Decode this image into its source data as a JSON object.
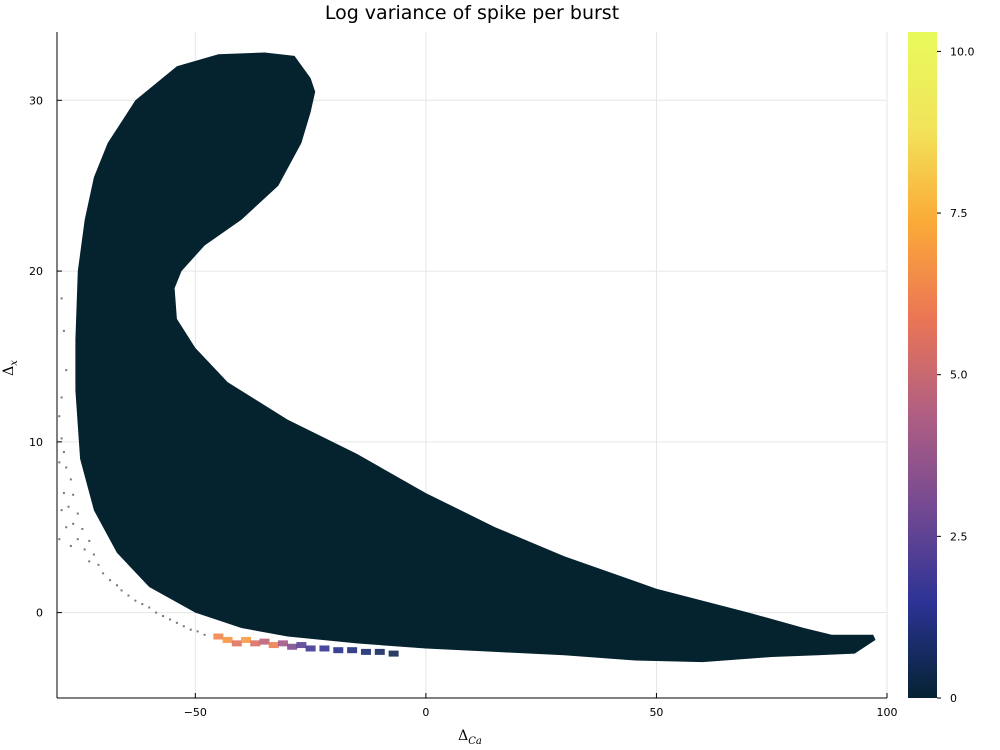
{
  "chart_data": {
    "type": "heatmap",
    "title": "Log variance of spike per burst",
    "xlabel": "Δ",
    "xlabel_sub": "Ca",
    "ylabel": "Δ",
    "ylabel_sub": "x",
    "xlim": [
      -80,
      100
    ],
    "ylim": [
      -5,
      34
    ],
    "xticks": [
      -50,
      0,
      50,
      100
    ],
    "xtick_labels": [
      "−50",
      "0",
      "50",
      "100"
    ],
    "yticks": [
      0,
      10,
      20,
      30
    ],
    "ytick_labels": [
      "0",
      "10",
      "20",
      "30"
    ],
    "grid": true,
    "colormap": "thermal",
    "colorbar": {
      "range": [
        0,
        10.3
      ],
      "ticks": [
        0,
        2.5,
        5.0,
        7.5,
        10.0
      ],
      "tick_labels": [
        "0",
        "2.5",
        "5.0",
        "7.5",
        "10.0"
      ],
      "colors": [
        "#042333",
        "#2c3395",
        "#744992",
        "#b15f82",
        "#eb7655",
        "#fbaa38",
        "#f2e45b",
        "#e8fa5b"
      ]
    },
    "region_value": 0,
    "region_color": "#05222f",
    "region_outline": [
      [
        -28.5,
        32.6
      ],
      [
        -25,
        31.3
      ],
      [
        -24,
        30.5
      ],
      [
        -25,
        29.3
      ],
      [
        -27,
        27.5
      ],
      [
        -32,
        25
      ],
      [
        -40,
        23
      ],
      [
        -48,
        21.5
      ],
      [
        -53,
        20
      ],
      [
        -54.5,
        19
      ],
      [
        -54,
        17.2
      ],
      [
        -50,
        15.5
      ],
      [
        -43,
        13.5
      ],
      [
        -30,
        11.3
      ],
      [
        -15,
        9.3
      ],
      [
        0,
        7
      ],
      [
        15,
        5
      ],
      [
        30,
        3.3
      ],
      [
        50,
        1.4
      ],
      [
        70,
        0
      ],
      [
        82,
        -0.9
      ],
      [
        88,
        -1.3
      ],
      [
        97,
        -1.3
      ],
      [
        97.5,
        -1.6
      ],
      [
        93,
        -2.4
      ],
      [
        85,
        -2.5
      ],
      [
        75,
        -2.6
      ],
      [
        60,
        -2.9
      ],
      [
        45,
        -2.8
      ],
      [
        30,
        -2.5
      ],
      [
        15,
        -2.3
      ],
      [
        0,
        -2.1
      ],
      [
        -15,
        -1.8
      ],
      [
        -30,
        -1.4
      ],
      [
        -40,
        -0.9
      ],
      [
        -50,
        0
      ],
      [
        -60,
        1.5
      ],
      [
        -67,
        3.5
      ],
      [
        -72,
        6
      ],
      [
        -75,
        9
      ],
      [
        -76,
        13
      ],
      [
        -76,
        16
      ],
      [
        -75.5,
        20
      ],
      [
        -74,
        23
      ],
      [
        -72,
        25.5
      ],
      [
        -69,
        27.5
      ],
      [
        -63,
        30
      ],
      [
        -54,
        32
      ],
      [
        -45,
        32.7
      ],
      [
        -35,
        32.8
      ]
    ],
    "edge_band": [
      {
        "x": -45,
        "y": -1.4,
        "value": 6.3
      },
      {
        "x": -43,
        "y": -1.6,
        "value": 6.8
      },
      {
        "x": -41,
        "y": -1.8,
        "value": 5.6
      },
      {
        "x": -39,
        "y": -1.6,
        "value": 6.9
      },
      {
        "x": -37,
        "y": -1.8,
        "value": 5.4
      },
      {
        "x": -35,
        "y": -1.7,
        "value": 4.7
      },
      {
        "x": -33,
        "y": -1.9,
        "value": 6.1
      },
      {
        "x": -31,
        "y": -1.8,
        "value": 4.0
      },
      {
        "x": -29,
        "y": -2.0,
        "value": 3.2
      },
      {
        "x": -27,
        "y": -1.9,
        "value": 2.4
      },
      {
        "x": -25,
        "y": -2.1,
        "value": 1.9
      },
      {
        "x": -22,
        "y": -2.1,
        "value": 1.6
      },
      {
        "x": -19,
        "y": -2.2,
        "value": 1.3
      },
      {
        "x": -16,
        "y": -2.2,
        "value": 1.1
      },
      {
        "x": -13,
        "y": -2.3,
        "value": 0.9
      },
      {
        "x": -10,
        "y": -2.3,
        "value": 0.7
      },
      {
        "x": -7,
        "y": -2.4,
        "value": 0.5
      }
    ],
    "scatter_dots": [
      {
        "x": -79,
        "y": 18.4
      },
      {
        "x": -78.5,
        "y": 16.5
      },
      {
        "x": -79.5,
        "y": 11.5
      },
      {
        "x": -79,
        "y": 10.2
      },
      {
        "x": -78.5,
        "y": 9.4
      },
      {
        "x": -78,
        "y": 8.5
      },
      {
        "x": -79.5,
        "y": 8.8
      },
      {
        "x": -77,
        "y": 7.8
      },
      {
        "x": -78.5,
        "y": 7.0
      },
      {
        "x": -76.5,
        "y": 6.9
      },
      {
        "x": -77.5,
        "y": 6.2
      },
      {
        "x": -79,
        "y": 6.0
      },
      {
        "x": -75.5,
        "y": 5.8
      },
      {
        "x": -76.5,
        "y": 5.2
      },
      {
        "x": -78,
        "y": 5.0
      },
      {
        "x": -74.5,
        "y": 4.9
      },
      {
        "x": -75.5,
        "y": 4.3
      },
      {
        "x": -79.5,
        "y": 4.3
      },
      {
        "x": -73,
        "y": 4.2
      },
      {
        "x": -74,
        "y": 3.7
      },
      {
        "x": -77,
        "y": 3.9
      },
      {
        "x": -72,
        "y": 3.4
      },
      {
        "x": -73,
        "y": 3.0
      },
      {
        "x": -71,
        "y": 2.8
      },
      {
        "x": -70,
        "y": 2.3
      },
      {
        "x": -68.5,
        "y": 1.9
      },
      {
        "x": -67,
        "y": 1.6
      },
      {
        "x": -66,
        "y": 1.3
      },
      {
        "x": -64.5,
        "y": 1.0
      },
      {
        "x": -63,
        "y": 0.7
      },
      {
        "x": -61.5,
        "y": 0.5
      },
      {
        "x": -60,
        "y": 0.3
      },
      {
        "x": -58.5,
        "y": 0.0
      },
      {
        "x": -57,
        "y": -0.2
      },
      {
        "x": -55.5,
        "y": -0.4
      },
      {
        "x": -54,
        "y": -0.6
      },
      {
        "x": -52.5,
        "y": -0.8
      },
      {
        "x": -51,
        "y": -1.0
      },
      {
        "x": -49.5,
        "y": -1.1
      },
      {
        "x": -48,
        "y": -1.3
      },
      {
        "x": -79,
        "y": 12.6
      },
      {
        "x": -78,
        "y": 14.2
      }
    ]
  }
}
